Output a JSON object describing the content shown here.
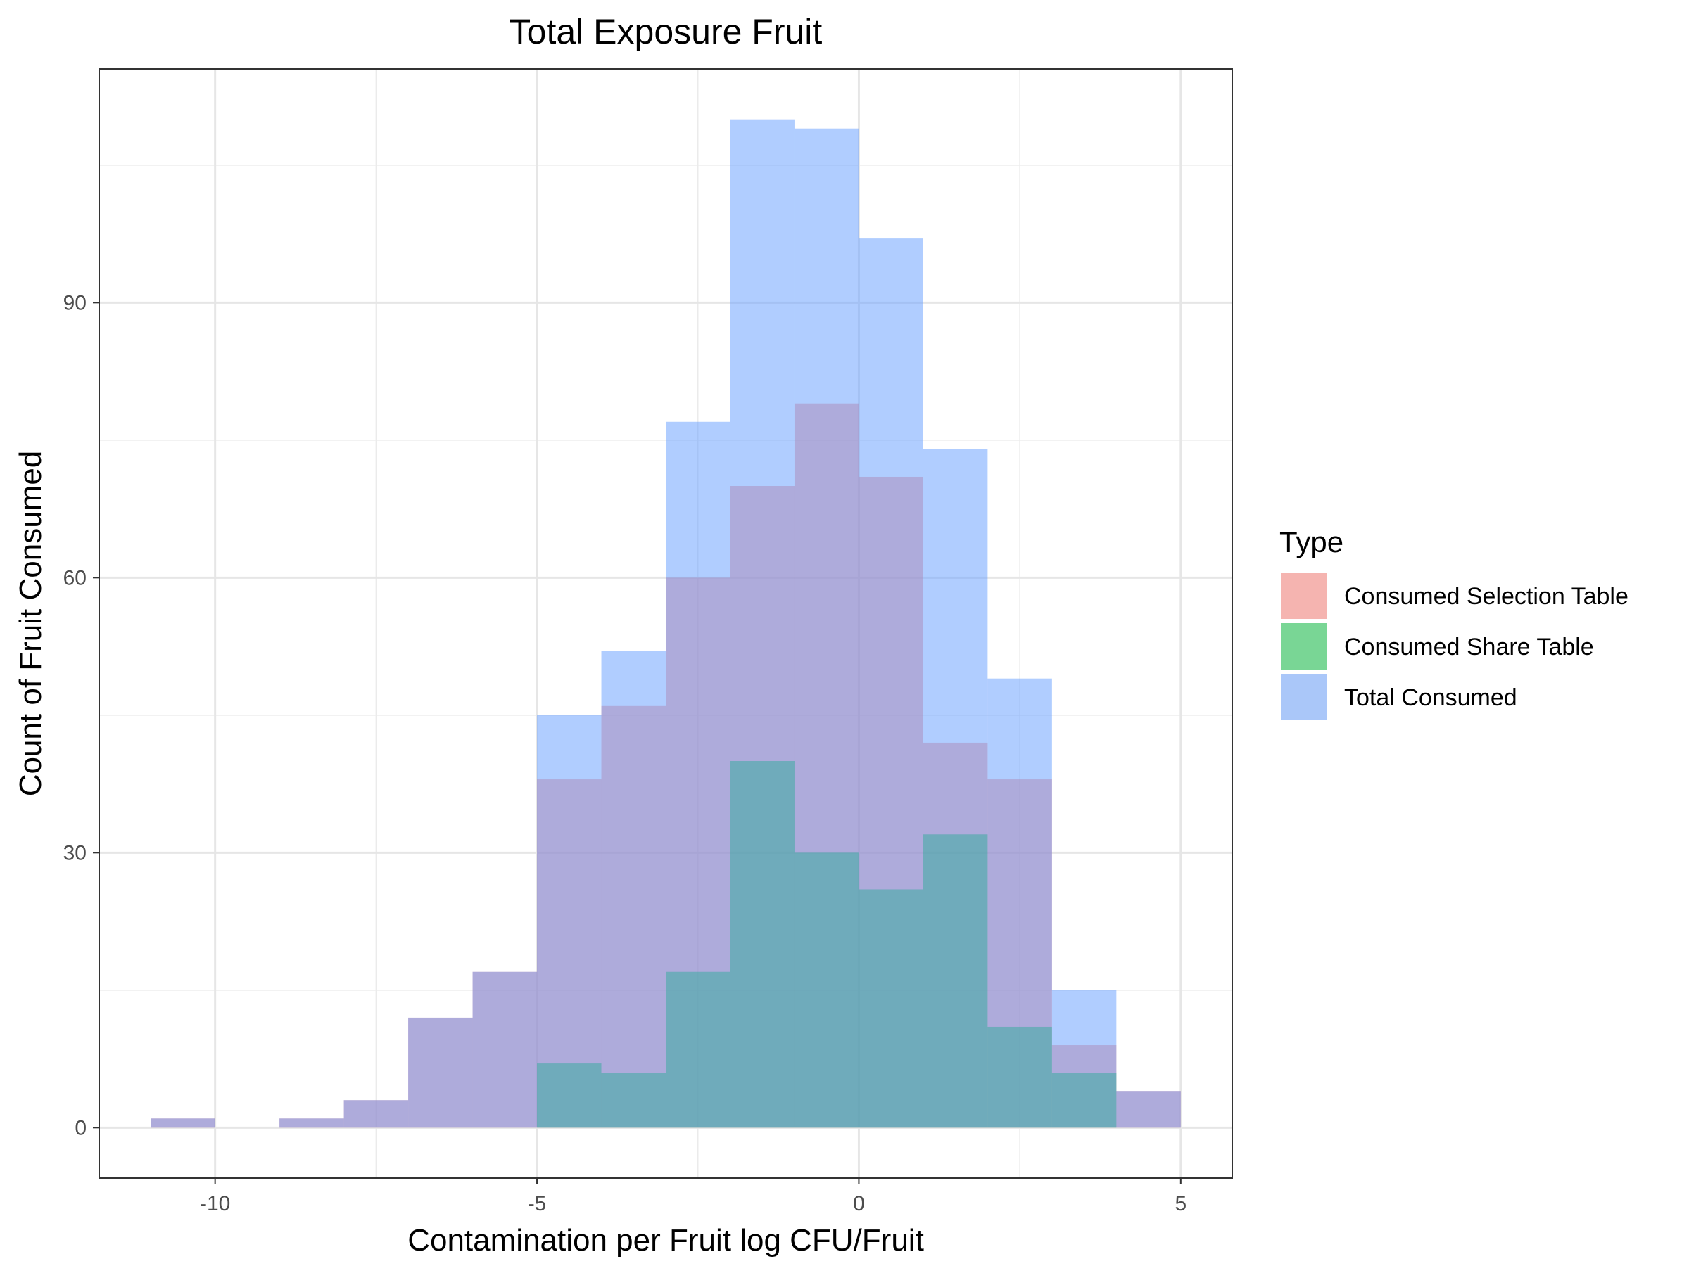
{
  "chart_data": {
    "type": "histogram",
    "title": "Total Exposure Fruit",
    "xlabel": "Contamination per Fruit log CFU/Fruit",
    "ylabel": "Count of Fruit Consumed",
    "xlim": [
      -11.8,
      5.8
    ],
    "ylim": [
      -5.5,
      115.5
    ],
    "x_ticks": [
      -10,
      -5,
      0,
      5
    ],
    "x_tick_labels": [
      "-10",
      "-5",
      "0",
      "5"
    ],
    "y_ticks": [
      0,
      30,
      60,
      90
    ],
    "y_tick_labels": [
      "0",
      "30",
      "60",
      "90"
    ],
    "bin_width": 1,
    "bin_starts": [
      -11,
      -10,
      -9,
      -8,
      -7,
      -6,
      -5,
      -4,
      -3,
      -2,
      -1,
      0,
      1,
      2,
      3,
      4
    ],
    "series": [
      {
        "name": "Consumed Selection Table",
        "color": "#F8766D",
        "values": [
          1,
          0,
          1,
          3,
          12,
          17,
          38,
          46,
          60,
          70,
          79,
          71,
          42,
          38,
          9,
          4
        ]
      },
      {
        "name": "Consumed Share Table",
        "color": "#00BA38",
        "values": [
          0,
          0,
          0,
          0,
          0,
          0,
          7,
          6,
          17,
          40,
          30,
          26,
          32,
          11,
          6,
          0
        ]
      },
      {
        "name": "Total Consumed",
        "color": "#619CFF",
        "values": [
          1,
          0,
          1,
          3,
          12,
          17,
          45,
          52,
          77,
          110,
          109,
          97,
          74,
          49,
          15,
          4
        ]
      }
    ],
    "fill_alpha": 0.5,
    "grid": true,
    "legend": {
      "title": "Type",
      "position": "right"
    }
  }
}
